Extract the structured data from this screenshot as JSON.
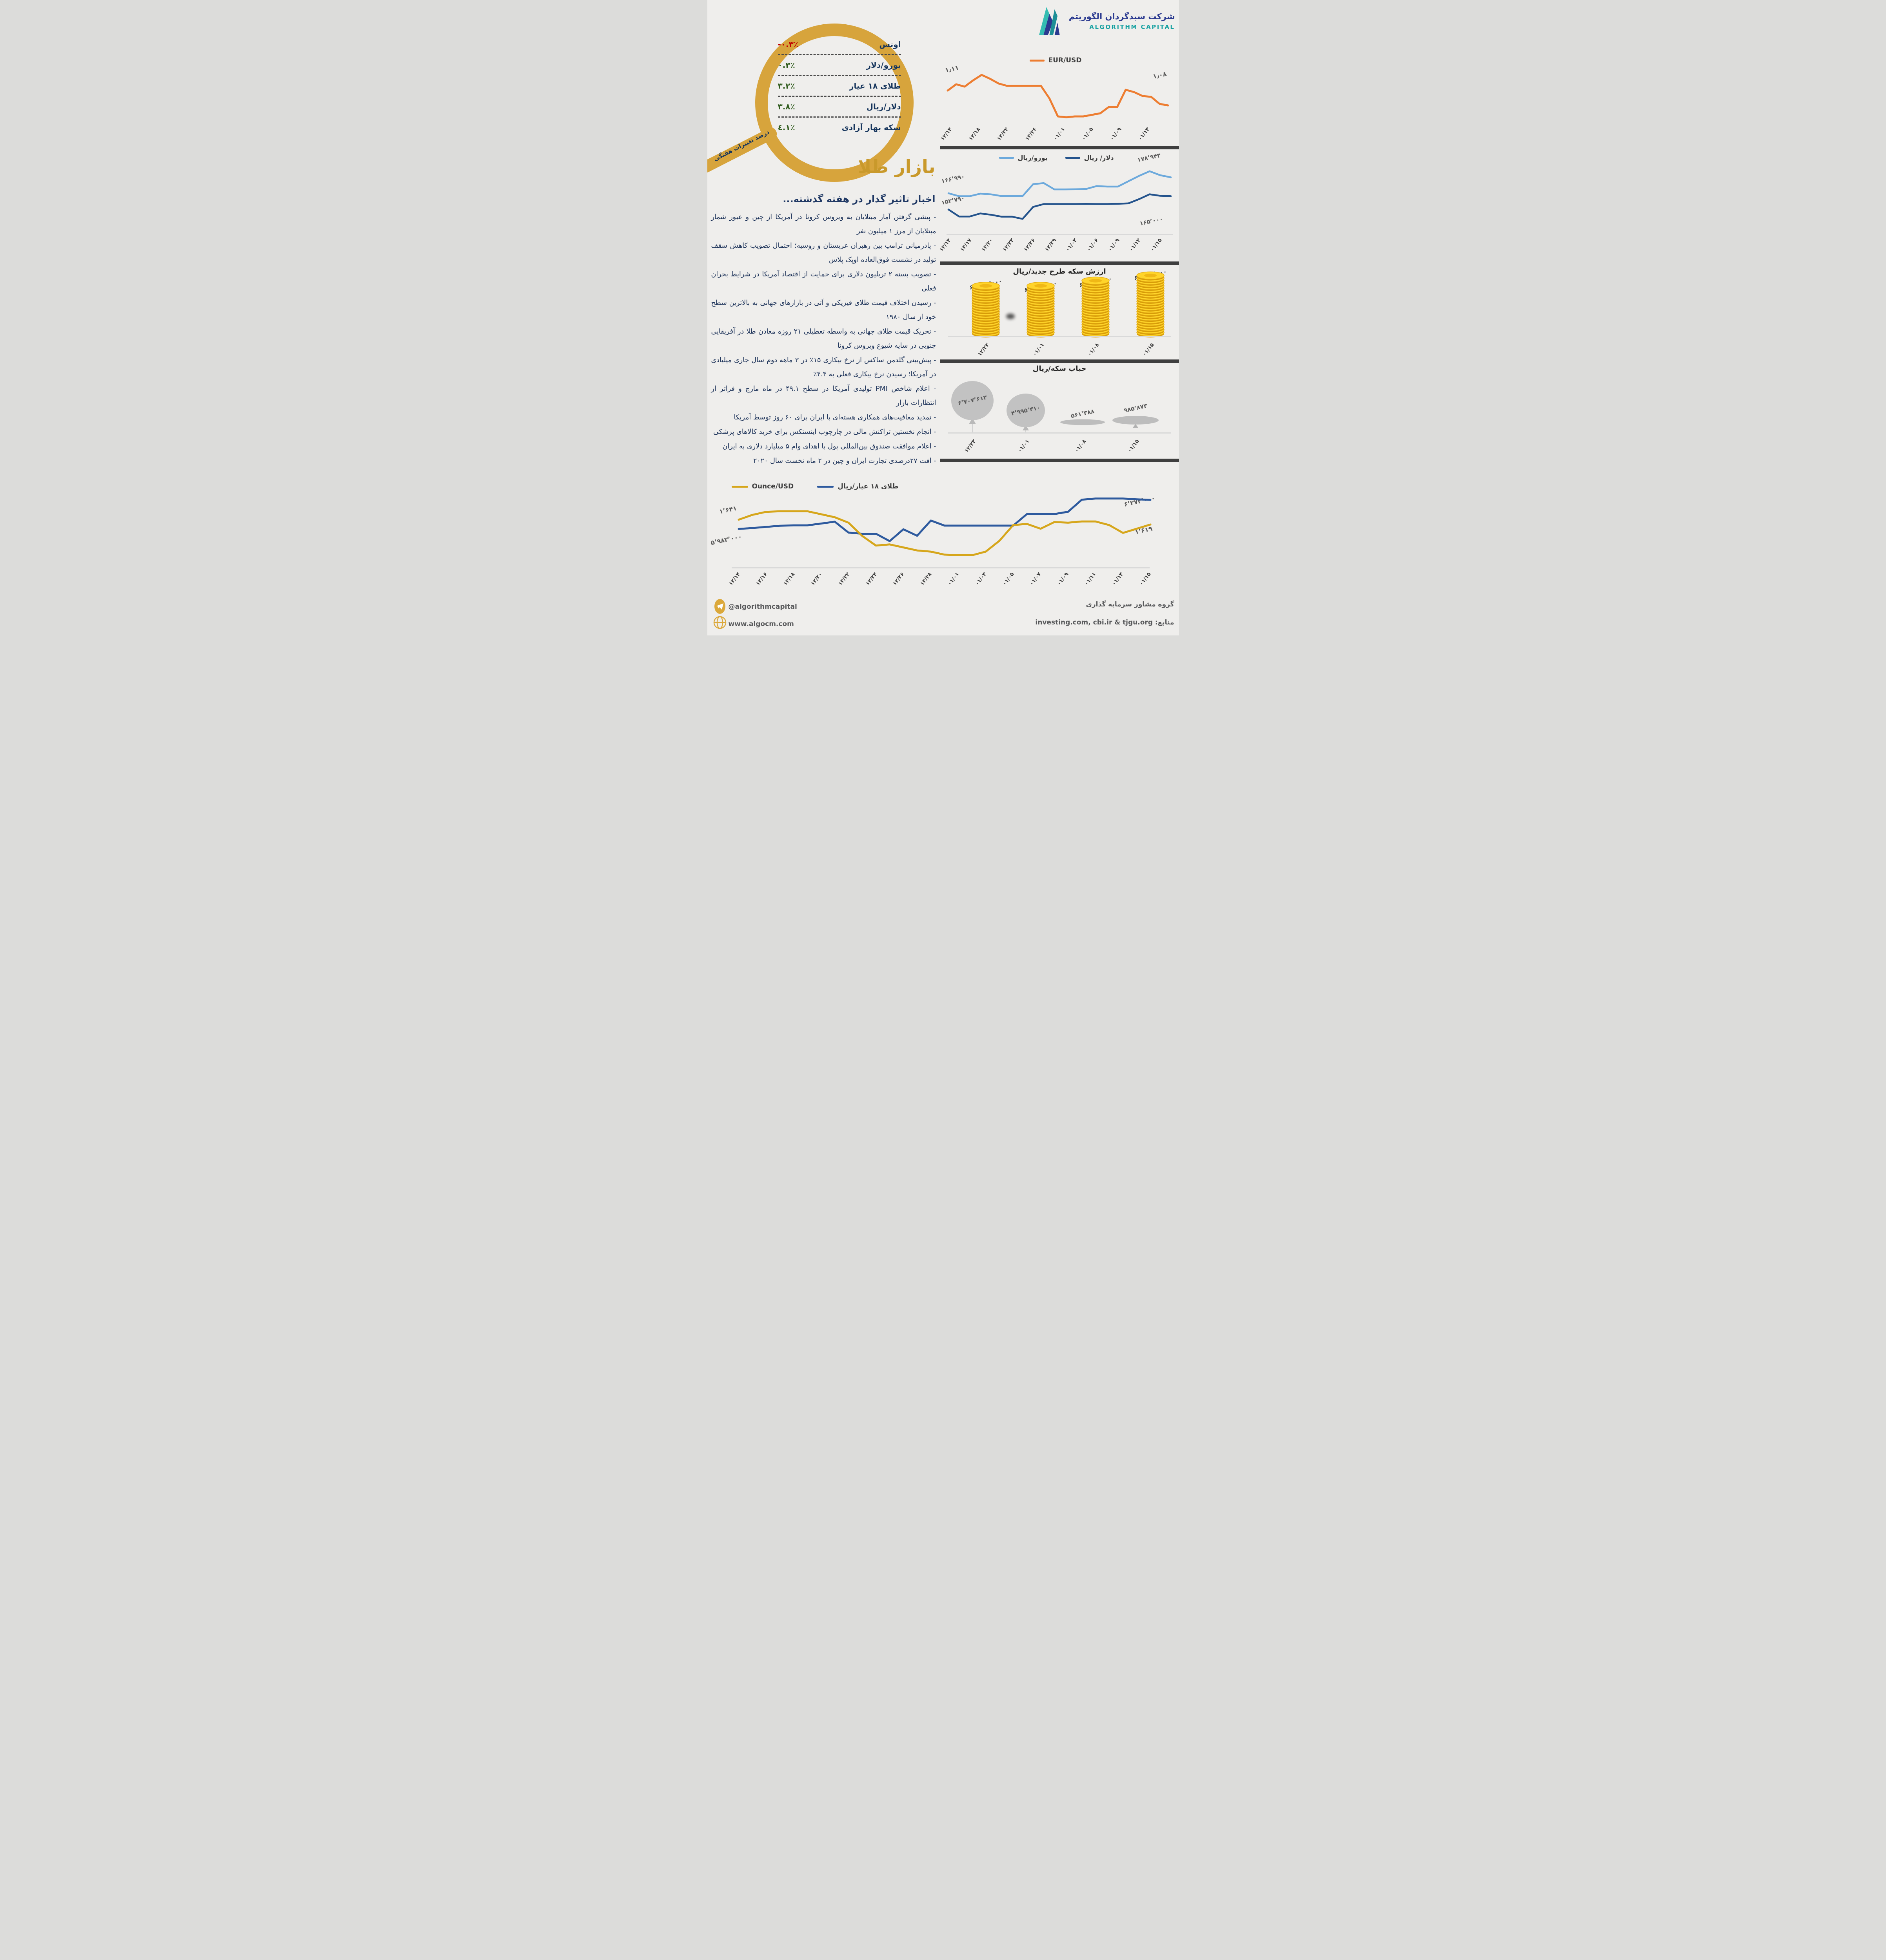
{
  "brand": {
    "name_fa": "شرکت سبدگردان الگوریتم",
    "name_en": "ALGORITHM CAPITAL"
  },
  "magnifier": {
    "handle_label": "درصد تغییرات هفتگی",
    "rows": [
      {
        "label": "اونس",
        "value": "-۰.۳٪",
        "direction": "down"
      },
      {
        "label": "یورو/دلار",
        "value": "۰.۳٪",
        "direction": "up"
      },
      {
        "label": "طلای ۱۸ عیار",
        "value": "۳.۲٪",
        "direction": "up"
      },
      {
        "label": "دلار/ریال",
        "value": "۳.۸٪",
        "direction": "up"
      },
      {
        "label": "سکه بهار آزادی",
        "value": "٤.۱٪",
        "direction": "up"
      }
    ]
  },
  "page_title": "بازار طلا",
  "news": {
    "heading": "اخبار تاثیر گذار در هفته گذشته...",
    "items": [
      "- پیشی گرفتن آمار مبتلایان به ویروس کرونا در آمریکا از چین و عبور شمار مبتلایان از مرز ۱ میلیون نفر",
      "- پادرمیانی ترامپ بین رهبران عربستان و روسیه؛ احتمال تصویب کاهش سقف تولید در نشست فوق‌العاده اوپک پلاس",
      "- تصویب بسته ۲ تریلیون دلاری برای حمایت از اقتصاد آمریکا در شرایط بحران فعلی",
      "- رسیدن اختلاف قیمت طلای فیزیکی و آتی در بازارهای جهانی به بالاترین سطح خود از سال ۱۹۸۰",
      "- تحریک قیمت طلای جهانی به واسطه تعطیلی ۲۱ روزه معادن طلا در آفریقایی جنوبی در سایه شیوع ویروس کرونا",
      "- پیش‌بینی گلدمن ساکس از نرخ بیکاری ۱۵٪ در ۳ ماهه دوم سال جاری میلیادی در آمریکا؛ رسیدن نرخ بیکاری فعلی به ۴.۴٪",
      "- اعلام شاخص PMI تولیدی آمریکا در سطح ۴۹.۱ در ماه مارچ و فراتر از انتظارات بازار",
      "- تمدید معافیت‌های همکاری هسته‌ای با ایران برای ۶۰ روز توسط آمریکا",
      "- انجام نخستین تراکنش مالی در چارچوب اینستکس برای خرید کالاهای پزشکی",
      "- اعلام موافقت صندوق بین‌المللی پول با اهدای وام ۵ میلیارد دلاری به ایران",
      "- افت ۲۷درصدی تجارت ایران و چین در ۲ ماه نخست سال ۲۰۲۰"
    ]
  },
  "chart_data": [
    {
      "id": "eur",
      "type": "line",
      "legend": [
        "EUR/USD"
      ],
      "x_labels": [
        "۱۲/۱۴",
        "۱۲/۱۸",
        "۱۲/۲۲",
        "۱۲/۲۶",
        "۰۱/۰۱",
        "۰۱/۰۵",
        "۰۱/۰۹",
        "۰۱/۱۳"
      ],
      "point_labels": [
        {
          "text": "۱٫۱۱"
        },
        {
          "text": "۱٫۰۸"
        }
      ],
      "series": [
        {
          "name": "EUR/USD",
          "color": "#ED7D31",
          "width": 5,
          "ylim": [
            1.055,
            1.12
          ],
          "values": [
            1.095,
            1.103,
            1.1,
            1.108,
            1.115,
            1.11,
            1.104,
            1.101,
            1.101,
            1.101,
            1.101,
            1.101,
            1.085,
            1.062,
            1.061,
            1.062,
            1.062,
            1.064,
            1.066,
            1.074,
            1.074,
            1.096,
            1.093,
            1.088,
            1.087,
            1.078,
            1.076
          ]
        }
      ]
    },
    {
      "id": "rial",
      "type": "line",
      "legend": [
        "دلار/ ریال",
        "یورو/ریال"
      ],
      "x_labels": [
        "۱۲/۱۴",
        "۱۲/۱۷",
        "۱۲/۲۰",
        "۱۲/۲۳",
        "۱۲/۲۶",
        "۱۲/۲۹",
        "۰۱/۰۳",
        "۰۱/۰۶",
        "۰۱/۰۹",
        "۰۱/۱۲",
        "۰۱/۱۵"
      ],
      "point_labels": [
        {
          "text": "۱۷۸٬۹۴۳"
        },
        {
          "text": "۱۶۶٬۹۹۰"
        },
        {
          "text": "۱۵۳٬۷۹۰"
        },
        {
          "text": "۱۶۵٬۰۰۰"
        }
      ],
      "series": [
        {
          "name": "دلار/ ریال",
          "color": "#24538C",
          "width": 4.5,
          "ylim": [
            135500,
            188200
          ],
          "values": [
            153790,
            147900,
            147900,
            150500,
            149400,
            147800,
            147800,
            145900,
            156000,
            158400,
            158400,
            158400,
            158400,
            158500,
            158400,
            158400,
            158600,
            159000,
            162500,
            166600,
            165300,
            165000
          ]
        },
        {
          "name": "یورو/ریال",
          "color": "#6CA9DC",
          "width": 4.5,
          "ylim": [
            138500,
            185500
          ],
          "values": [
            166990,
            164800,
            164800,
            166700,
            166200,
            164900,
            164900,
            164900,
            173800,
            174600,
            169900,
            169900,
            170000,
            170200,
            172400,
            172000,
            172000,
            176000,
            180000,
            183500,
            180500,
            178943
          ]
        }
      ]
    },
    {
      "id": "coins",
      "type": "bar",
      "title": "ارزش سکه طرح جدید/ریال",
      "categories": [
        "۱۲/۲۳",
        "۰۱/۰۱",
        "۰۱/۰۸",
        "۰۱/۱۵"
      ],
      "values": [
        60010000,
        60280000,
        61380000,
        63900000
      ],
      "value_labels": [
        "۶۰٬۰۱۰٬۰۰۰",
        "۶۰٬۲۸۰٬۰۰۰",
        "۶۱٬۳۸۰٬۰۰۰",
        "۶۳٬۹۰۰٬۰۰۰"
      ],
      "coins": [
        19,
        19,
        21,
        23
      ]
    },
    {
      "id": "bubble",
      "type": "bubble",
      "title": "حباب سکه/ریال",
      "categories": [
        "۱۲/۲۳",
        "۰۱/۰۱",
        "۰۱/۰۸",
        "۰۱/۱۵"
      ],
      "values": [
        6707612,
        4995310,
        561388,
        985873
      ],
      "value_labels": [
        "۶٬۷۰۷٬۶۱۲",
        "۴٬۹۹۵٬۳۱۰",
        "۵۶۱٬۳۸۸",
        "۹۸۵٬۸۷۳"
      ]
    },
    {
      "id": "gold",
      "type": "line",
      "legend": [
        "طلای ۱۸ عیار/ریال",
        "Ounce/USD"
      ],
      "x_labels": [
        "۱۲/۱۴",
        "۱۲/۱۶",
        "۱۲/۱۸",
        "۱۲/۲۰",
        "۱۲/۲۲",
        "۱۲/۲۴",
        "۱۲/۲۶",
        "۱۲/۲۸",
        "۰۱/۰۱",
        "۰۱/۰۳",
        "۰۱/۰۵",
        "۰۱/۰۷",
        "۰۱/۰۹",
        "۰۱/۱۱",
        "۰۱/۱۳",
        "۰۱/۱۵"
      ],
      "point_labels": [
        {
          "text": "۱٬۶۴۱"
        },
        {
          "text": "۵٬۹۸۲٬۰۰۰"
        },
        {
          "text": "۶٬۳۷۲٬۰۰۰"
        },
        {
          "text": "۱٬۶۱۹"
        }
      ],
      "series": [
        {
          "name": "طلای ۱۸ عیار/ریال",
          "color": "#2E5A9E",
          "width": 5,
          "ylim": [
            5516000,
            6463000
          ],
          "values": [
            5982000,
            5995000,
            6010000,
            6025000,
            6031000,
            6031000,
            6055000,
            6080000,
            5933000,
            5918000,
            5918000,
            5819000,
            5978000,
            5891000,
            6095000,
            6027000,
            6027000,
            6027000,
            6027000,
            6027000,
            6027000,
            6182000,
            6182000,
            6182000,
            6213000,
            6375000,
            6391000,
            6391000,
            6391000,
            6380000,
            6372000
          ]
        },
        {
          "name": "Ounce/USD",
          "color": "#D6A61B",
          "width": 5,
          "ylim": [
            1554,
            1671
          ],
          "values": [
            1627,
            1635,
            1640,
            1641,
            1641,
            1641,
            1636,
            1631,
            1622,
            1600,
            1584,
            1586,
            1581,
            1576,
            1574,
            1569,
            1568,
            1568,
            1574,
            1592,
            1618,
            1620,
            1612,
            1623,
            1622,
            1624,
            1624,
            1618,
            1605,
            1612,
            1619
          ]
        }
      ]
    }
  ],
  "footer": {
    "telegram": "@algorithmcapital",
    "website": "www.algocm.com",
    "group": "گروه مشاور سرمایه گذاری",
    "sources": "منابع: investing.com, cbi.ir & tjgu.org"
  },
  "colors": {
    "gold_accent": "#D7A43C",
    "title_gold": "#C9992B",
    "navy": "#17365D",
    "up_green": "#2F5B1C",
    "down_red": "#C00000",
    "eur_orange": "#ED7D31",
    "dollar_blue": "#24538C",
    "euro_lightblue": "#6CA9DC",
    "gold18_blue": "#2E5A9E",
    "ounce_yellow": "#D6A61B",
    "coin_yellow": "#FFD42A",
    "balloon_gray": "#C2C2C2",
    "divider": "#3F3F3F"
  }
}
